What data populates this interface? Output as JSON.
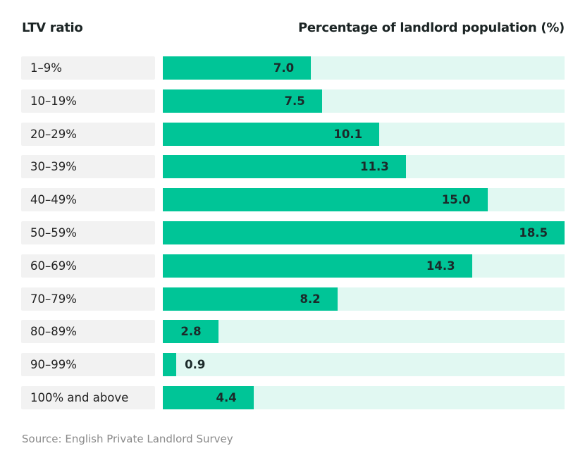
{
  "chart_data": {
    "type": "bar",
    "orientation": "horizontal",
    "category_header": "LTV ratio",
    "value_header": "Percentage of landlord population (%)",
    "categories": [
      "1–9%",
      "10–19%",
      "20–29%",
      "30–39%",
      "40–49%",
      "50–59%",
      "60–69%",
      "70–79%",
      "80–89%",
      "90–99%",
      "100% and above"
    ],
    "values": [
      7.0,
      7.5,
      10.1,
      11.3,
      15.0,
      18.5,
      14.3,
      8.2,
      2.8,
      0.9,
      4.4
    ],
    "value_labels": [
      "7.0",
      "7.5",
      "10.1",
      "11.3",
      "15.0",
      "18.5",
      "14.3",
      "8.2",
      "2.8",
      "0.9",
      "4.4"
    ],
    "grid": false,
    "colors": {
      "bar": "#00c597",
      "track": "#e1f8f2",
      "label_bg": "#f2f2f2"
    }
  },
  "source": "Source: English Private Landlord Survey"
}
